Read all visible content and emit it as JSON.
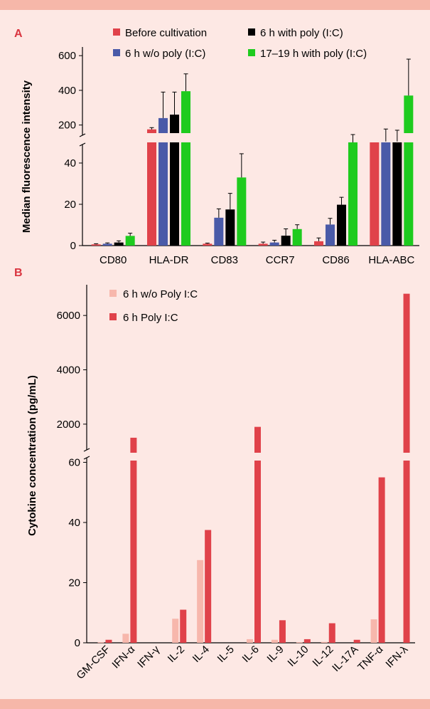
{
  "panel_a": {
    "letter": "A",
    "ylabel": "Median fluorescence intensity",
    "legend": [
      {
        "name": "Before cultivation",
        "color": "#e0424a"
      },
      {
        "name": "6 h with poly (I:C)",
        "color": "#000000"
      },
      {
        "name": "6 h w/o poly (I:C)",
        "color": "#4a5aa8"
      },
      {
        "name": "17–19 h with poly (I:C)",
        "color": "#1ecb1e"
      }
    ]
  },
  "panel_b": {
    "letter": "B",
    "ylabel": "Cytokine concentration (pg/mL)",
    "legend": [
      {
        "name": "6 h w/o Poly I:C",
        "color": "#f7b7ac"
      },
      {
        "name": "6 h Poly I:C",
        "color": "#e0424a"
      }
    ]
  },
  "chart_data": [
    {
      "type": "bar",
      "title": "",
      "xlabel": "",
      "ylabel": "Median fluorescence intensity",
      "broken_axis": {
        "lower": [
          0,
          50
        ],
        "upper": [
          100,
          650
        ]
      },
      "lower_ticks": [
        "0",
        "20",
        "40"
      ],
      "upper_ticks": [
        "200",
        "400",
        "600"
      ],
      "categories": [
        "CD80",
        "HLA-DR",
        "CD83",
        "CCR7",
        "CD86",
        "HLA-ABC"
      ],
      "series": [
        {
          "name": "Before cultivation",
          "color": "#e0424a",
          "values": [
            0.6,
            175,
            0.9,
            0.9,
            2.1,
            100
          ],
          "errors": [
            0.3,
            10,
            0.3,
            0.8,
            1.6,
            0
          ]
        },
        {
          "name": "6 h w/o poly (I:C)",
          "color": "#4a5aa8",
          "values": [
            0.9,
            240,
            13.5,
            1.5,
            10.2,
            105
          ],
          "errors": [
            0.4,
            150,
            4.3,
            1.1,
            3.0,
            72
          ]
        },
        {
          "name": "6 h with poly (I:C)",
          "color": "#000000",
          "values": [
            1.5,
            260,
            17.5,
            4.8,
            19.8,
            105
          ],
          "errors": [
            0.8,
            130,
            7.8,
            3.3,
            3.6,
            65
          ]
        },
        {
          "name": "17–19 h with poly (I:C)",
          "color": "#1ecb1e",
          "values": [
            4.7,
            395,
            33,
            8.0,
            80,
            370
          ],
          "errors": [
            1.3,
            100,
            11.5,
            2.1,
            65,
            210
          ]
        }
      ]
    },
    {
      "type": "bar",
      "title": "",
      "xlabel": "",
      "ylabel": "Cytokine concentration (pg/mL)",
      "broken_axis": {
        "lower": [
          0,
          62
        ],
        "upper": [
          1000,
          7000
        ]
      },
      "lower_ticks": [
        "0",
        "20",
        "40",
        "60"
      ],
      "upper_ticks": [
        "2000",
        "4000",
        "6000"
      ],
      "categories": [
        "GM-CSF",
        "IFN-α",
        "IFN-γ",
        "IL-2",
        "IL-4",
        "IL-5",
        "IL-6",
        "IL-9",
        "IL-10",
        "IL-12",
        "IL-17A",
        "TNF-α",
        "IFN-λ"
      ],
      "series": [
        {
          "name": "6 h w/o Poly I:C",
          "color": "#f7b7ac",
          "values": [
            0.2,
            3,
            0,
            8,
            27.5,
            0,
            1.2,
            1,
            0.2,
            0.3,
            0,
            7.8,
            0
          ]
        },
        {
          "name": "6 h Poly I:C",
          "color": "#e0424a",
          "values": [
            1,
            1500,
            0,
            11,
            37.5,
            0,
            1900,
            7.5,
            1.2,
            6.5,
            1,
            55,
            6800
          ]
        }
      ]
    }
  ]
}
